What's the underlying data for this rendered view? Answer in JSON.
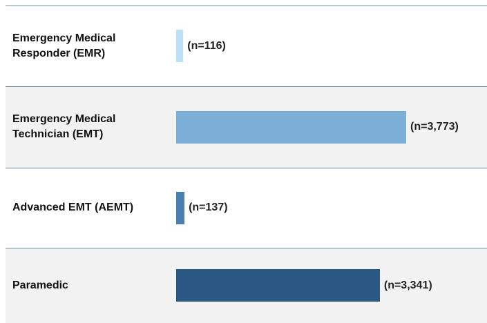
{
  "chart_data": {
    "type": "bar",
    "orientation": "horizontal",
    "categories": [
      "Emergency Medical Responder (EMR)",
      "Emergency Medical Technician (EMT)",
      "Advanced EMT (AEMT)",
      "Paramedic"
    ],
    "values": [
      116,
      3773,
      137,
      3341
    ],
    "value_labels": [
      "(n=116)",
      "(n=3,773)",
      "(n=137)",
      "(n=3,341)"
    ],
    "colors": [
      "#bde0f5",
      "#7bafd8",
      "#4a7fb0",
      "#2b5784"
    ]
  }
}
